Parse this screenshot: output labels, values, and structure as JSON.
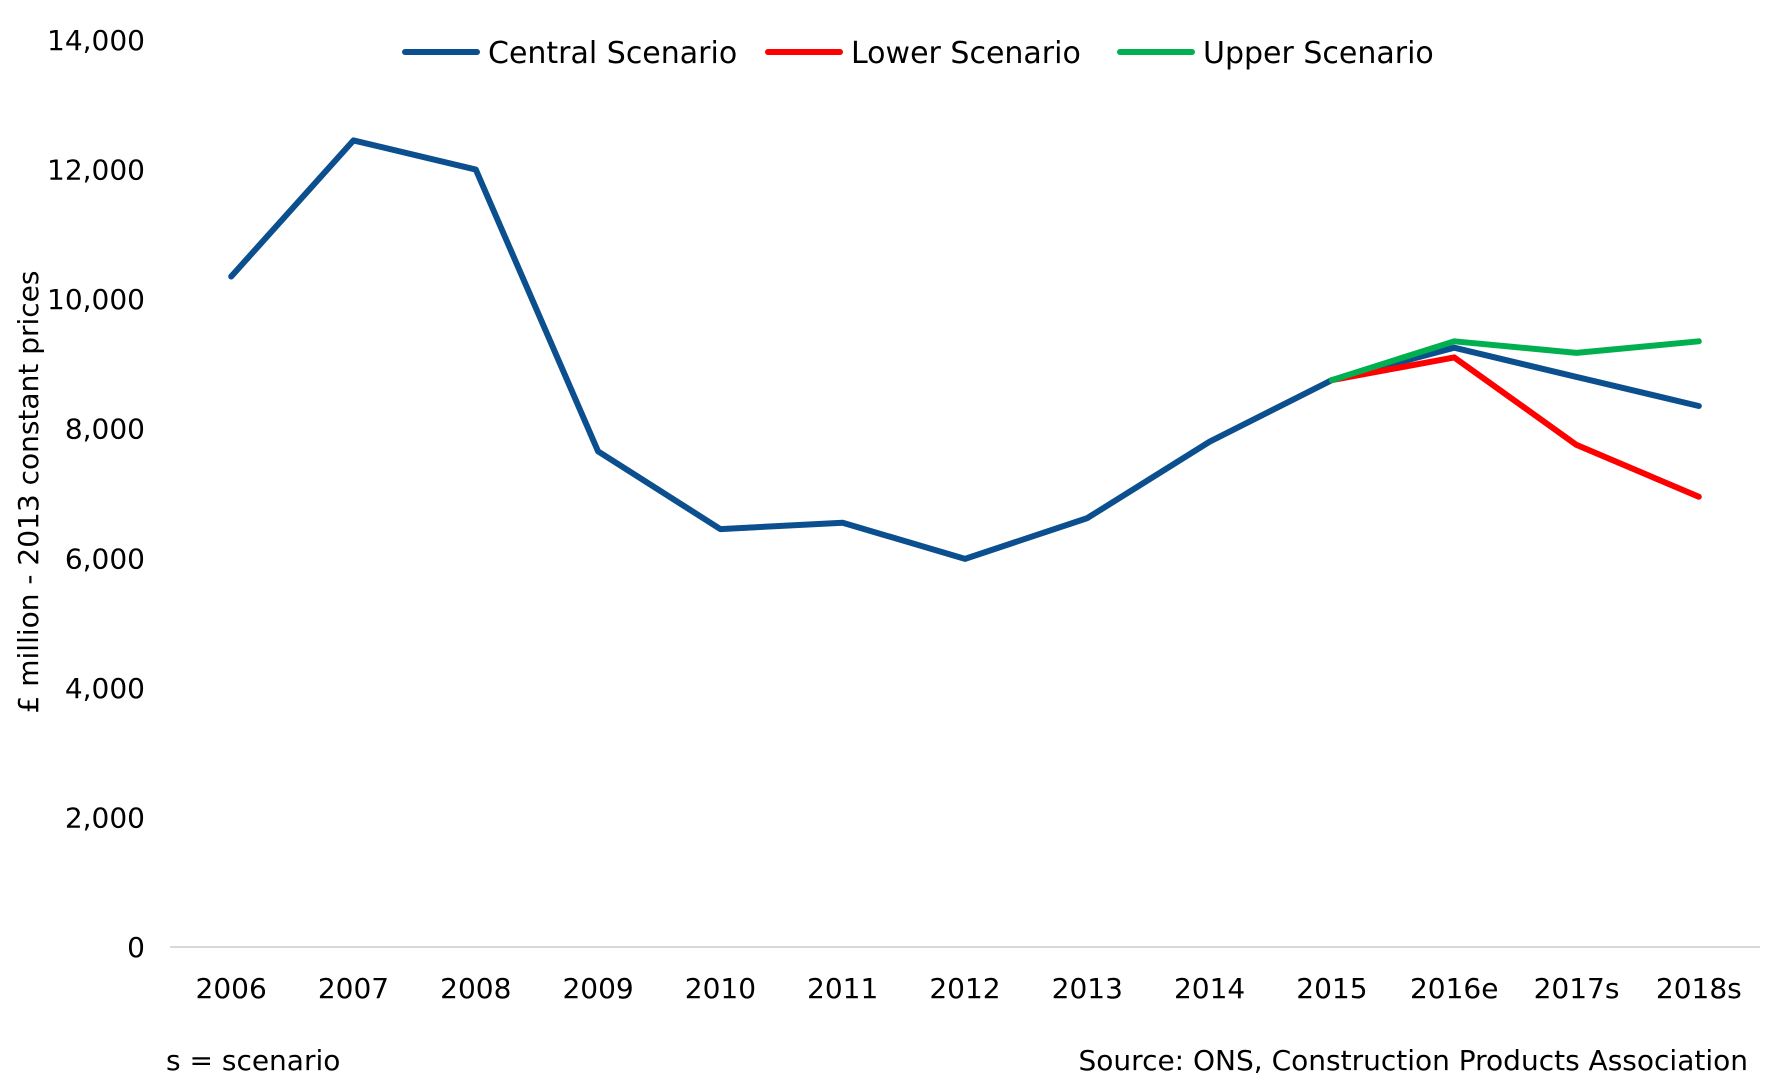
{
  "chart_data": {
    "type": "line",
    "categories": [
      "2006",
      "2007",
      "2008",
      "2009",
      "2010",
      "2011",
      "2012",
      "2013",
      "2014",
      "2015",
      "2016e",
      "2017s",
      "2018s"
    ],
    "series": [
      {
        "name": "Central Scenario",
        "color": "#0B4F8F",
        "values": [
          10350,
          12450,
          12000,
          7650,
          6450,
          6550,
          5990,
          6620,
          7800,
          8750,
          9250,
          8800,
          8350
        ]
      },
      {
        "name": "Lower Scenario",
        "color": "#FF0000",
        "values": [
          null,
          null,
          null,
          null,
          null,
          null,
          null,
          null,
          null,
          8750,
          9100,
          7750,
          6950
        ]
      },
      {
        "name": "Upper Scenario",
        "color": "#00B050",
        "values": [
          null,
          null,
          null,
          null,
          null,
          null,
          null,
          null,
          null,
          8750,
          9350,
          9170,
          9350
        ]
      }
    ],
    "y_ticks": [
      "0",
      "2,000",
      "4,000",
      "6,000",
      "8,000",
      "10,000",
      "12,000",
      "14,000"
    ],
    "ylim": [
      0,
      14000
    ],
    "ylabel": "£ million - 2013 constant prices",
    "xlabel": "",
    "legend_position": "top",
    "grid": false
  },
  "notes": {
    "scenario_note": "s = scenario",
    "source": "Source: ONS, Construction Products Association"
  }
}
